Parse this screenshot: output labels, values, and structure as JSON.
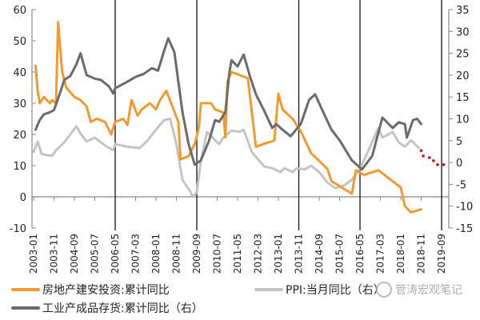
{
  "chart_data": {
    "type": "line",
    "x_ticks": [
      "2003-01",
      "2003-11",
      "2004-09",
      "2005-07",
      "2006-05",
      "2007-03",
      "2008-01",
      "2008-11",
      "2009-09",
      "2010-07",
      "2011-05",
      "2012-03",
      "2013-01",
      "2013-11",
      "2014-09",
      "2015-07",
      "2016-05",
      "2017-03",
      "2018-01",
      "2018-11",
      "2019-09"
    ],
    "vertical_markers": [
      "2006-05",
      "2009-09",
      "2013-11",
      "2016-05",
      "2019-09"
    ],
    "y_left": {
      "ylim": [
        -10,
        60
      ],
      "ticks": [
        -10,
        0,
        10,
        20,
        30,
        40,
        50,
        60
      ]
    },
    "y_right": {
      "ylim": [
        -15,
        35
      ],
      "ticks": [
        -15,
        -10,
        -5,
        0,
        5,
        10,
        15,
        20,
        25,
        30,
        35
      ]
    },
    "grid": false,
    "legend_placement": "bottom",
    "colors": {
      "orange": "#f29a30",
      "dark": "#6b6b6b",
      "light": "#c4c4c4",
      "forecast": "#d0101a"
    },
    "series": [
      {
        "name": "房地产建安投资:累计同比",
        "axis": "left",
        "color": "#f29a30",
        "points": [
          [
            "2003-02",
            42
          ],
          [
            "2003-03",
            34
          ],
          [
            "2003-04",
            30
          ],
          [
            "2003-06",
            32
          ],
          [
            "2003-09",
            30
          ],
          [
            "2003-10",
            31
          ],
          [
            "2003-12",
            30
          ],
          [
            "2004-01",
            56
          ],
          [
            "2004-03",
            40
          ],
          [
            "2004-05",
            35
          ],
          [
            "2004-09",
            32
          ],
          [
            "2004-12",
            31
          ],
          [
            "2005-03",
            29
          ],
          [
            "2005-05",
            24
          ],
          [
            "2005-08",
            25
          ],
          [
            "2005-12",
            24
          ],
          [
            "2006-03",
            20
          ],
          [
            "2006-05",
            24
          ],
          [
            "2006-09",
            25
          ],
          [
            "2006-11",
            23
          ],
          [
            "2007-01",
            31
          ],
          [
            "2007-04",
            26
          ],
          [
            "2007-06",
            28
          ],
          [
            "2007-10",
            30
          ],
          [
            "2008-01",
            28
          ],
          [
            "2008-03",
            31
          ],
          [
            "2008-06",
            34
          ],
          [
            "2008-09",
            29
          ],
          [
            "2008-12",
            24
          ],
          [
            "2009-01",
            12
          ],
          [
            "2009-05",
            13
          ],
          [
            "2009-08",
            17
          ],
          [
            "2009-10",
            22
          ],
          [
            "2009-11",
            30
          ],
          [
            "2010-04",
            30
          ],
          [
            "2010-06",
            28
          ],
          [
            "2010-10",
            27
          ],
          [
            "2010-11",
            19
          ],
          [
            "2010-12",
            37
          ],
          [
            "2011-02",
            40
          ],
          [
            "2011-06",
            39
          ],
          [
            "2011-10",
            38
          ],
          [
            "2011-12",
            27
          ],
          [
            "2012-02",
            16
          ],
          [
            "2012-06",
            17
          ],
          [
            "2012-11",
            18
          ],
          [
            "2013-01",
            33
          ],
          [
            "2013-03",
            28
          ],
          [
            "2013-08",
            25
          ],
          [
            "2013-12",
            21
          ],
          [
            "2014-05",
            14
          ],
          [
            "2015-01",
            9
          ],
          [
            "2015-03",
            5
          ],
          [
            "2016-01",
            1
          ],
          [
            "2016-03",
            8.5
          ],
          [
            "2016-07",
            7
          ],
          [
            "2017-02",
            8.5
          ],
          [
            "2018-01",
            3
          ],
          [
            "2018-03",
            -3
          ],
          [
            "2018-06",
            -5
          ],
          [
            "2018-11",
            -4
          ]
        ]
      },
      {
        "name": "PPI:当月同比（右）",
        "axis": "right",
        "color": "#c4c4c4",
        "points": [
          [
            "2003-01",
            2.4
          ],
          [
            "2003-03",
            4.8
          ],
          [
            "2003-05",
            1.9
          ],
          [
            "2003-10",
            1.5
          ],
          [
            "2003-12",
            2.8
          ],
          [
            "2004-04",
            4.6
          ],
          [
            "2004-10",
            8.3
          ],
          [
            "2004-12",
            6.6
          ],
          [
            "2005-03",
            4.8
          ],
          [
            "2005-07",
            5.7
          ],
          [
            "2005-12",
            3.9
          ],
          [
            "2006-04",
            2.8
          ],
          [
            "2006-05",
            4.2
          ],
          [
            "2006-11",
            3.6
          ],
          [
            "2007-05",
            3.3
          ],
          [
            "2007-09",
            5.1
          ],
          [
            "2008-01",
            7.5
          ],
          [
            "2008-05",
            9.7
          ],
          [
            "2008-08",
            10
          ],
          [
            "2008-11",
            4.2
          ],
          [
            "2009-02",
            -4
          ],
          [
            "2009-06",
            -6.8
          ],
          [
            "2009-07",
            -7.9
          ],
          [
            "2009-09",
            -6.8
          ],
          [
            "2009-11",
            0.5
          ],
          [
            "2010-02",
            7
          ],
          [
            "2010-06",
            5.1
          ],
          [
            "2010-08",
            4.2
          ],
          [
            "2010-10",
            5.7
          ],
          [
            "2011-02",
            7.3
          ],
          [
            "2011-06",
            7
          ],
          [
            "2011-08",
            7.5
          ],
          [
            "2011-12",
            2.4
          ],
          [
            "2012-06",
            -0.9
          ],
          [
            "2012-10",
            -1.3
          ],
          [
            "2013-02",
            -2.2
          ],
          [
            "2013-04",
            -1.3
          ],
          [
            "2013-08",
            -2.2
          ],
          [
            "2013-10",
            -1.3
          ],
          [
            "2014-02",
            -1.6
          ],
          [
            "2014-05",
            -0.7
          ],
          [
            "2014-09",
            -2.2
          ],
          [
            "2015-01",
            -4.6
          ],
          [
            "2015-05",
            -5.9
          ],
          [
            "2015-09",
            -5.3
          ],
          [
            "2016-01",
            -4
          ],
          [
            "2016-05",
            -1.3
          ],
          [
            "2016-08",
            1.5
          ],
          [
            "2017-02",
            7.9
          ],
          [
            "2017-04",
            5.7
          ],
          [
            "2017-09",
            7
          ],
          [
            "2017-12",
            4.6
          ],
          [
            "2018-03",
            3.6
          ],
          [
            "2018-06",
            5.1
          ],
          [
            "2018-10",
            3.3
          ]
        ],
        "forecast": [
          [
            "2018-11",
            2.7
          ],
          [
            "2018-12",
            1.5
          ],
          [
            "2019-03",
            1.1
          ],
          [
            "2019-05",
            0.4
          ],
          [
            "2019-07",
            -0.5
          ],
          [
            "2019-10",
            -0.5
          ]
        ]
      },
      {
        "name": "工业产成品存货:累计同比（右）",
        "axis": "right",
        "color": "#6b6b6b",
        "points": [
          [
            "2003-02",
            7.5
          ],
          [
            "2003-04",
            9.7
          ],
          [
            "2003-06",
            11
          ],
          [
            "2003-09",
            11.5
          ],
          [
            "2003-11",
            12
          ],
          [
            "2004-02",
            16
          ],
          [
            "2004-04",
            18.9
          ],
          [
            "2004-07",
            19.8
          ],
          [
            "2004-10",
            22.5
          ],
          [
            "2004-12",
            25
          ],
          [
            "2005-03",
            20
          ],
          [
            "2005-07",
            19.2
          ],
          [
            "2005-10",
            18.9
          ],
          [
            "2006-02",
            17.4
          ],
          [
            "2006-04",
            15.8
          ],
          [
            "2006-05",
            17
          ],
          [
            "2006-11",
            18.5
          ],
          [
            "2007-03",
            19.6
          ],
          [
            "2007-07",
            20.3
          ],
          [
            "2007-11",
            21.6
          ],
          [
            "2008-02",
            21
          ],
          [
            "2008-05",
            25.6
          ],
          [
            "2008-07",
            28.4
          ],
          [
            "2008-10",
            25.3
          ],
          [
            "2009-02",
            11.5
          ],
          [
            "2009-05",
            4.2
          ],
          [
            "2009-08",
            -0.5
          ],
          [
            "2009-11",
            0.5
          ],
          [
            "2010-03",
            5
          ],
          [
            "2010-06",
            9.7
          ],
          [
            "2010-08",
            9.3
          ],
          [
            "2010-11",
            11.5
          ],
          [
            "2011-01",
            20.7
          ],
          [
            "2011-02",
            23.4
          ],
          [
            "2011-05",
            22
          ],
          [
            "2011-08",
            24.7
          ],
          [
            "2011-11",
            19.8
          ],
          [
            "2012-02",
            15.6
          ],
          [
            "2012-06",
            11.9
          ],
          [
            "2012-10",
            7.9
          ],
          [
            "2012-12",
            8.8
          ],
          [
            "2013-03",
            7.5
          ],
          [
            "2013-07",
            6
          ],
          [
            "2013-12",
            8.8
          ],
          [
            "2014-04",
            14.3
          ],
          [
            "2014-07",
            15.6
          ],
          [
            "2014-11",
            11.5
          ],
          [
            "2015-03",
            7.5
          ],
          [
            "2015-07",
            5.1
          ],
          [
            "2016-01",
            0.5
          ],
          [
            "2016-06",
            -1.6
          ],
          [
            "2016-11",
            1.5
          ],
          [
            "2017-04",
            10.3
          ],
          [
            "2017-09",
            7.9
          ],
          [
            "2017-12",
            9.2
          ],
          [
            "2018-03",
            8.8
          ],
          [
            "2018-04",
            5.7
          ],
          [
            "2018-07",
            9.7
          ],
          [
            "2018-09",
            10
          ],
          [
            "2018-11",
            8.8
          ]
        ]
      }
    ]
  },
  "legend": {
    "item1": "房地产建安投资:累计同比",
    "item2": "PPI:当月同比（右）",
    "item3": "工业产成品存货:累计同比（右）"
  },
  "watermark": "管涛宏观笔记"
}
